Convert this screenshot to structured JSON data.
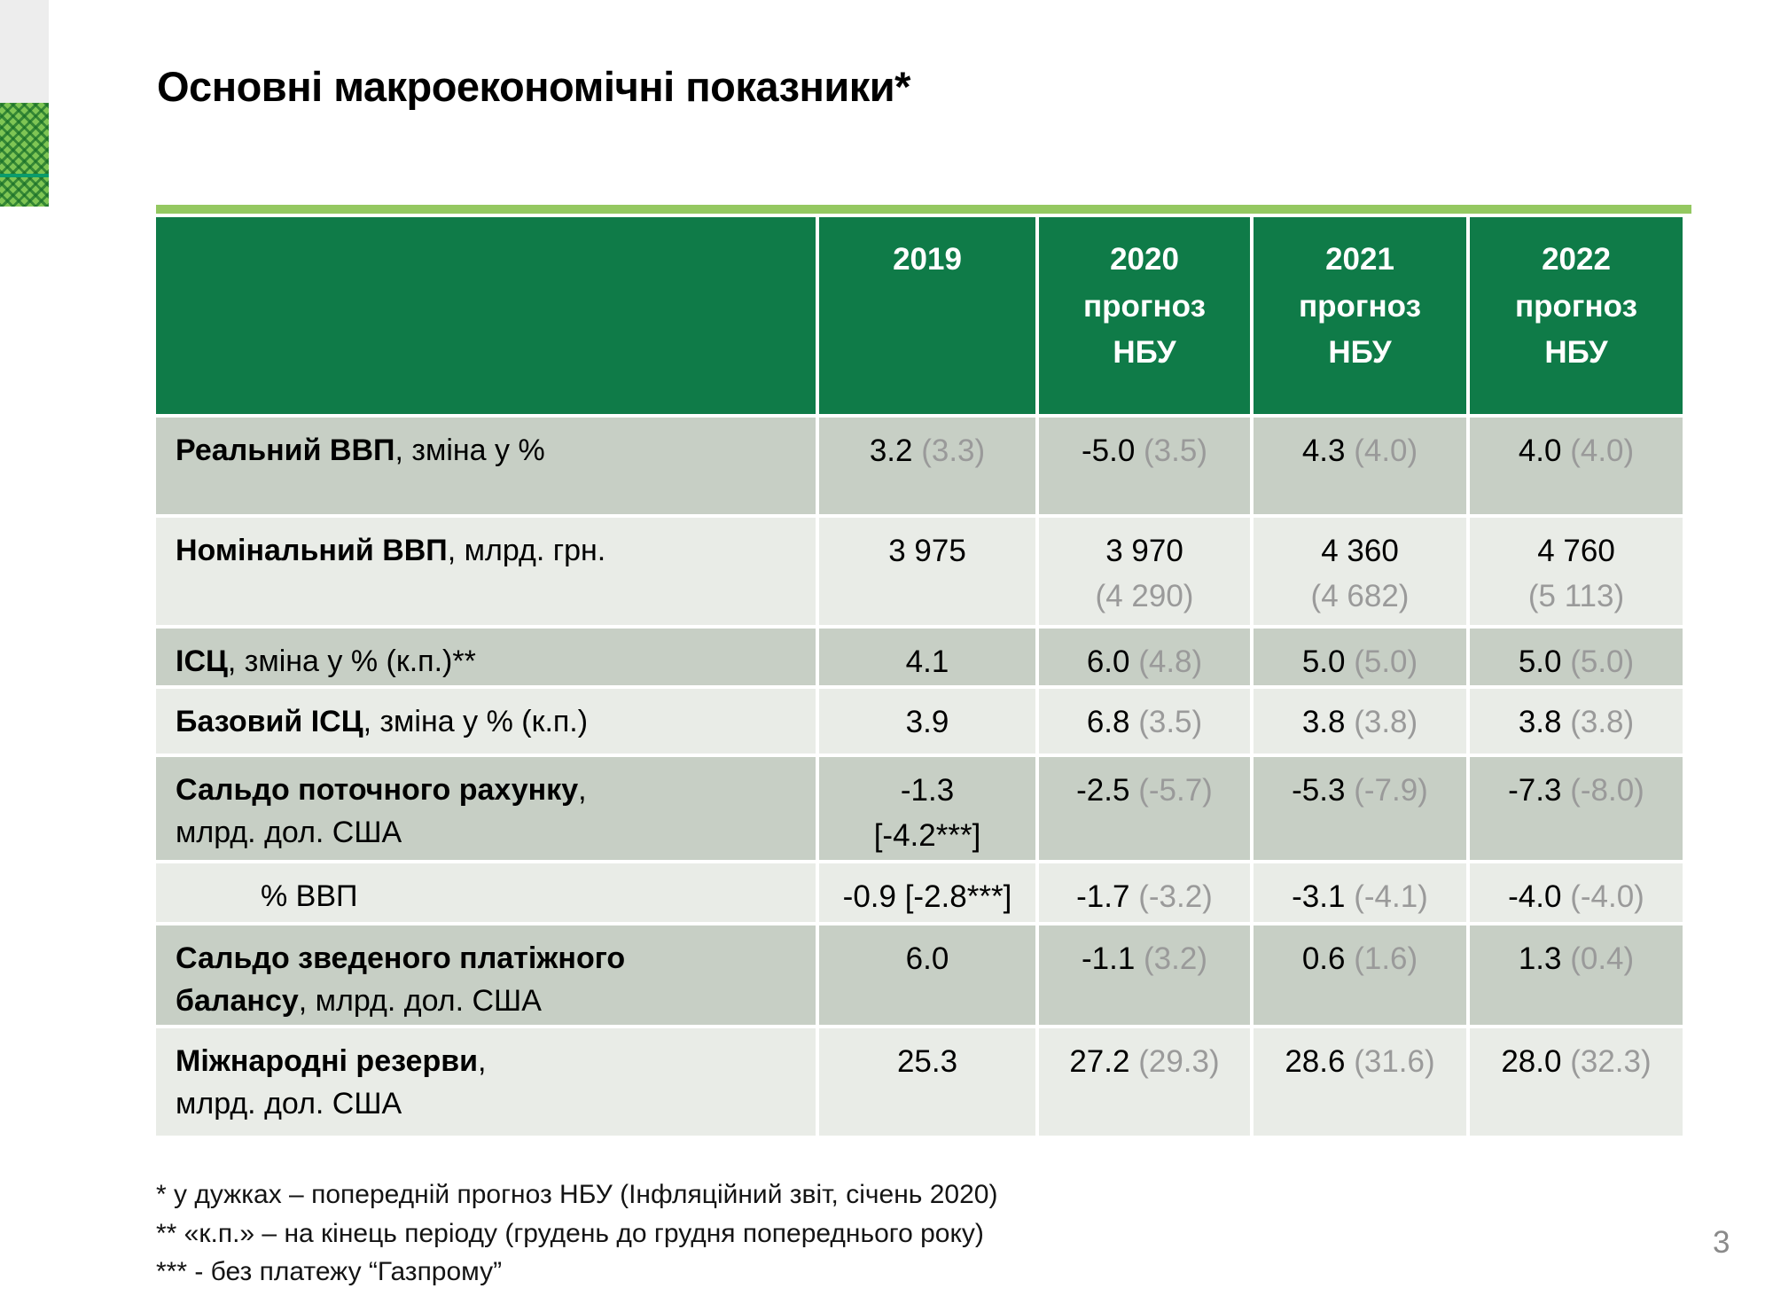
{
  "slide": {
    "title": "Основні макроекономічні показники*",
    "page_number": "3"
  },
  "colors": {
    "header_green": "#0f7b48",
    "accent_light_green": "#94c861",
    "row_dark": "#c7cfc5",
    "row_light": "#e9ece7",
    "forecast_paren_gray": "#9a9a9a",
    "guilloche_green": "#7ec554"
  },
  "table": {
    "header": {
      "corner": "",
      "years": [
        {
          "year": "2019",
          "sub_lines": []
        },
        {
          "year": "2020",
          "sub_lines": [
            "прогноз",
            "НБУ"
          ]
        },
        {
          "year": "2021",
          "sub_lines": [
            "прогноз",
            "НБУ"
          ]
        },
        {
          "year": "2022",
          "sub_lines": [
            "прогноз",
            "НБУ"
          ]
        }
      ]
    },
    "rows": [
      {
        "label_lines": [
          {
            "bold": "Реальний ВВП",
            "rest": ", зміна у %"
          }
        ],
        "cells": [
          {
            "v": "3.2",
            "p": "(3.3)"
          },
          {
            "v": "-5.0",
            "p": "(3.5)"
          },
          {
            "v": "4.3",
            "p": "(4.0)"
          },
          {
            "v": "4.0",
            "p": "(4.0)"
          }
        ]
      },
      {
        "label_lines": [
          {
            "bold": "Номінальний ВВП",
            "rest": ", млрд. грн."
          }
        ],
        "cells": [
          {
            "v": "3 975"
          },
          {
            "v": "3 970",
            "p": "(4 290)",
            "stack": true
          },
          {
            "v": "4 360",
            "p": "(4 682)",
            "stack": true
          },
          {
            "v": "4 760",
            "p": "(5 113)",
            "stack": true
          }
        ]
      },
      {
        "label_lines": [
          {
            "bold": "ІСЦ",
            "rest": ", зміна у % (к.п.)**"
          }
        ],
        "cells": [
          {
            "v": "4.1"
          },
          {
            "v": "6.0",
            "p": "(4.8)"
          },
          {
            "v": "5.0",
            "p": "(5.0)"
          },
          {
            "v": "5.0",
            "p": "(5.0)"
          }
        ]
      },
      {
        "label_lines": [
          {
            "bold": "Базовий ІСЦ",
            "rest": ", зміна у % (к.п.)"
          }
        ],
        "cells": [
          {
            "v": "3.9"
          },
          {
            "v": "6.8",
            "p": "(3.5)"
          },
          {
            "v": "3.8",
            "p": "(3.8)"
          },
          {
            "v": "3.8",
            "p": "(3.8)"
          }
        ]
      },
      {
        "label_lines": [
          {
            "bold": "Сальдо поточного рахунку",
            "rest": ","
          },
          {
            "bold": "",
            "rest": "млрд. дол. США"
          }
        ],
        "cells": [
          {
            "v": "-1.3",
            "b": "[-4.2***]"
          },
          {
            "v": "-2.5",
            "p": "(-5.7)"
          },
          {
            "v": "-5.3",
            "p": "(-7.9)"
          },
          {
            "v": "-7.3",
            "p": "(-8.0)"
          }
        ]
      },
      {
        "indent": true,
        "label_lines": [
          {
            "bold": "",
            "rest": "% ВВП"
          }
        ],
        "cells": [
          {
            "v": "-0.9 [-2.8***]"
          },
          {
            "v": "-1.7",
            "p": "(-3.2)"
          },
          {
            "v": "-3.1",
            "p": "(-4.1)"
          },
          {
            "v": "-4.0",
            "p": "(-4.0)"
          }
        ]
      },
      {
        "label_lines": [
          {
            "bold": "Сальдо зведеного платіжного",
            "rest": ""
          },
          {
            "bold": "балансу",
            "rest": ", млрд. дол. США"
          }
        ],
        "cells": [
          {
            "v": "6.0"
          },
          {
            "v": "-1.1",
            "p": "(3.2)"
          },
          {
            "v": "0.6",
            "p": "(1.6)"
          },
          {
            "v": "1.3",
            "p": "(0.4)"
          }
        ]
      },
      {
        "label_lines": [
          {
            "bold": "Міжнародні резерви",
            "rest": ","
          },
          {
            "bold": "",
            "rest": "млрд. дол. США"
          }
        ],
        "cells": [
          {
            "v": "25.3"
          },
          {
            "v": "27.2",
            "p": "(29.3)"
          },
          {
            "v": "28.6",
            "p": "(31.6)"
          },
          {
            "v": "28.0",
            "p": "(32.3)"
          }
        ]
      }
    ]
  },
  "footnotes": [
    "* у дужках – попередній прогноз НБУ (Інфляційний звіт, січень 2020)",
    "** «к.п.» – на кінець періоду (грудень до грудня попереднього року)",
    "*** - без платежу “Газпрому”"
  ]
}
